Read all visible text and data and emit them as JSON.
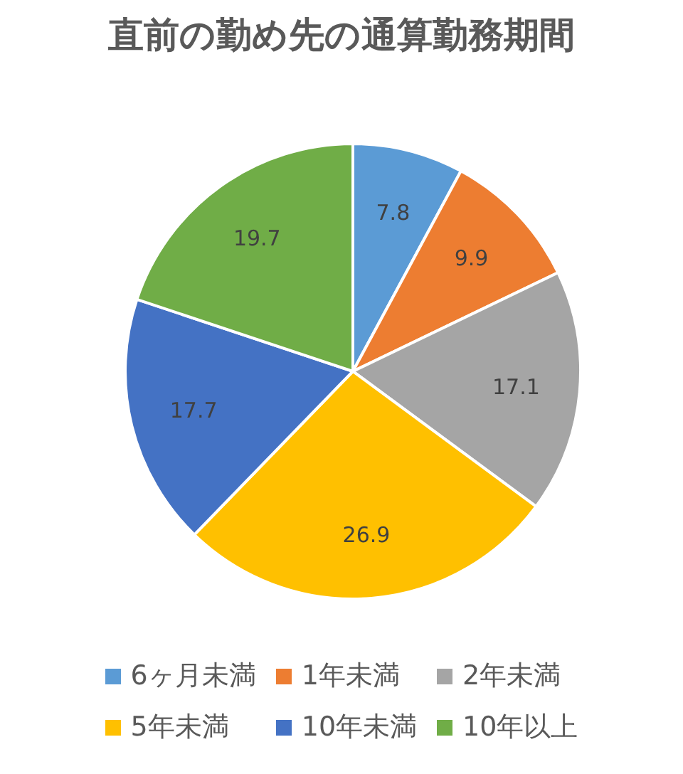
{
  "chart_data": {
    "type": "pie",
    "title": "直前の勤め先の通算勤務期間",
    "categories": [
      "6ヶ月未満",
      "1年未満",
      "2年未満",
      "5年未満",
      "10年未満",
      "10年以上"
    ],
    "values": [
      7.8,
      9.9,
      17.1,
      26.9,
      17.7,
      19.7
    ],
    "colors": [
      "#5b9bd5",
      "#ed7d31",
      "#a5a5a5",
      "#ffc000",
      "#4472c4",
      "#70ad47"
    ],
    "data_labels": true,
    "legend": "bottom"
  }
}
